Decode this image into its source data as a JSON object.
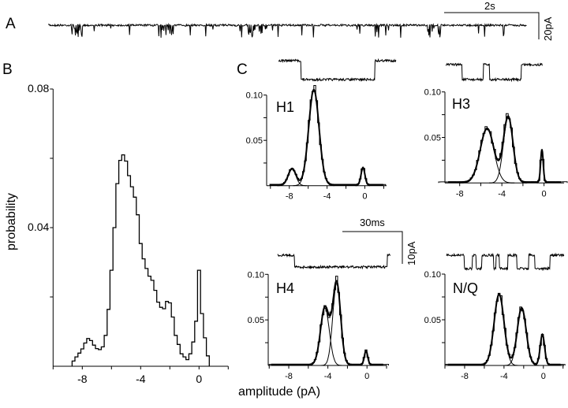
{
  "panels": {
    "A": {
      "label": "A",
      "time_scale": "2s",
      "current_scale": "20pA"
    },
    "B": {
      "label": "B"
    },
    "C": {
      "label": "C",
      "time_scale": "30ms",
      "current_scale": "10pA"
    }
  },
  "axis_labels": {
    "x": "amplitude (pA)",
    "y": "probability"
  },
  "chart_data": [
    {
      "id": "B",
      "type": "histogram",
      "xlabel": "amplitude (pA)",
      "ylabel": "probability",
      "xlim": [
        -10,
        2
      ],
      "ylim": [
        0,
        0.08
      ],
      "x_tick_labels": [
        "-8",
        "-4",
        "0"
      ],
      "y_tick_labels": [
        "0.04",
        "0.08"
      ],
      "bin_start": -8.7,
      "bin_width": 0.2,
      "values": [
        0.0015,
        0.0027,
        0.0038,
        0.005,
        0.0067,
        0.008,
        0.0074,
        0.0061,
        0.0051,
        0.0048,
        0.0056,
        0.0089,
        0.0164,
        0.0277,
        0.04,
        0.0527,
        0.0594,
        0.061,
        0.0592,
        0.055,
        0.0518,
        0.0488,
        0.0437,
        0.0354,
        0.031,
        0.0282,
        0.026,
        0.0248,
        0.0219,
        0.0185,
        0.017,
        0.0166,
        0.0187,
        0.0183,
        0.0142,
        0.0089,
        0.0063,
        0.0036,
        0.0027,
        0.0019,
        0.0036,
        0.007,
        0.013,
        0.0277,
        0.0152,
        0.0082,
        0.003
      ]
    },
    {
      "id": "H1",
      "type": "histogram+gaussian_fit",
      "label": "H1",
      "xlim": [
        -10.4,
        2.3
      ],
      "ylim": [
        0,
        0.1
      ],
      "x_tick_labels": [
        "-8",
        "-4",
        "0"
      ],
      "y_tick_labels": [
        "0.05",
        "0.10"
      ],
      "bin_width": 0.2,
      "components": [
        {
          "mean": -7.7,
          "peak": 0.018,
          "sd": 0.4
        },
        {
          "mean": -5.4,
          "peak": 0.105,
          "sd": 0.55
        },
        {
          "mean": -0.2,
          "peak": 0.019,
          "sd": 0.2
        }
      ]
    },
    {
      "id": "H3",
      "type": "histogram+gaussian_fit",
      "label": "H3",
      "xlim": [
        -9.4,
        1.9
      ],
      "ylim": [
        0,
        0.1
      ],
      "x_tick_labels": [
        "-8",
        "-4",
        "0"
      ],
      "y_tick_labels": [
        "0.05",
        "0.10"
      ],
      "bin_width": 0.2,
      "components": [
        {
          "mean": -5.4,
          "peak": 0.059,
          "sd": 0.65
        },
        {
          "mean": -3.4,
          "peak": 0.072,
          "sd": 0.45
        },
        {
          "mean": -0.2,
          "peak": 0.036,
          "sd": 0.12
        }
      ]
    },
    {
      "id": "H4",
      "type": "histogram+gaussian_fit",
      "label": "H4",
      "xlim": [
        -10.1,
        2.0
      ],
      "ylim": [
        0,
        0.1
      ],
      "x_tick_labels": [
        "-8",
        "-4",
        "0"
      ],
      "y_tick_labels": [
        "0.05",
        "0.10"
      ],
      "bin_width": 0.2,
      "components": [
        {
          "mean": -4.3,
          "peak": 0.063,
          "sd": 0.45
        },
        {
          "mean": -3.1,
          "peak": 0.09,
          "sd": 0.4
        },
        {
          "mean": -0.1,
          "peak": 0.015,
          "sd": 0.17
        }
      ]
    },
    {
      "id": "NQ",
      "type": "histogram+gaussian_fit",
      "label": "N/Q",
      "xlim": [
        -10.0,
        2.1
      ],
      "ylim": [
        0,
        0.1
      ],
      "x_tick_labels": [
        "-8",
        "-4",
        "0"
      ],
      "y_tick_labels": [
        "0.05",
        "0.10"
      ],
      "bin_width": 0.2,
      "components": [
        {
          "mean": -4.5,
          "peak": 0.077,
          "sd": 0.5
        },
        {
          "mean": -2.2,
          "peak": 0.062,
          "sd": 0.45
        },
        {
          "mean": -0.1,
          "peak": 0.033,
          "sd": 0.22
        }
      ]
    }
  ]
}
